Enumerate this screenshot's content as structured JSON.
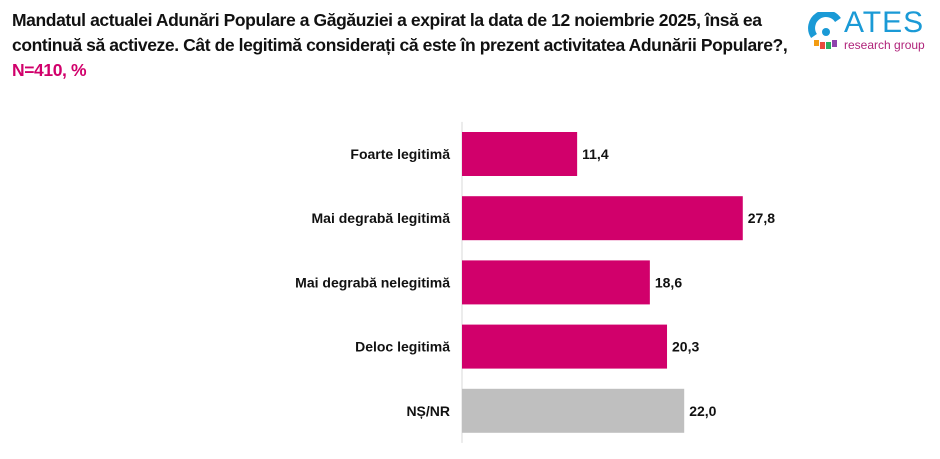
{
  "title": {
    "text": "Mandatul actualei Adunări Populare a Găgăuziei a expirat la data de 12 noiembrie 2025, însă ea continuă să activeze. Cât de legitimă considerați că este în prezent activitatea Adunării Populare?,",
    "accent": "N=410, %"
  },
  "logo": {
    "name": "ATES",
    "sub": "research group"
  },
  "colors": {
    "bar": "#d1006b",
    "bar_na": "#bfbfbf"
  },
  "chart_data": {
    "type": "bar",
    "orientation": "horizontal",
    "categories": [
      "Foarte legitimă",
      "Mai degrabă legitimă",
      "Mai degrabă nelegitimă",
      "Deloc legitimă",
      "NȘ/NR"
    ],
    "values": [
      11.4,
      27.8,
      18.6,
      20.3,
      22.0
    ],
    "labels": [
      "11,4",
      "27,8",
      "18,6",
      "20,3",
      "22,0"
    ],
    "xlim": [
      0,
      35
    ],
    "grid": false
  }
}
